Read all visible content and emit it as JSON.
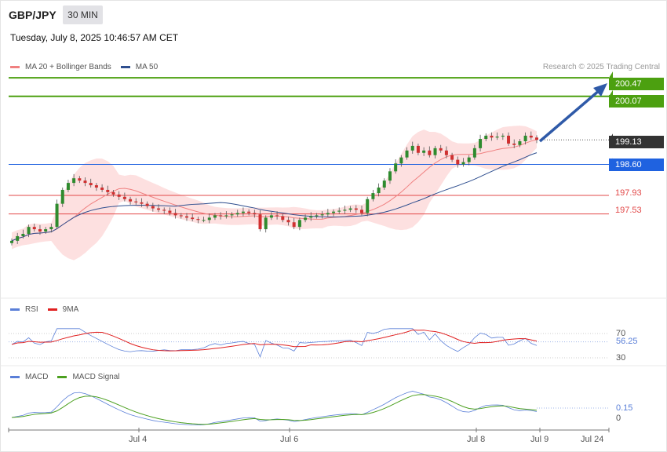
{
  "header": {
    "symbol": "GBP/JPY",
    "timeframe": "30 MIN",
    "datetime": "Tuesday, July 8, 2025 10:46:57 AM CET",
    "credit": "Research © 2025 Trading Central"
  },
  "legends": {
    "main": [
      {
        "label": "MA 20 + Bollinger Bands",
        "color": "#f08080"
      },
      {
        "label": "MA 50",
        "color": "#2f4f8f"
      }
    ],
    "rsi": [
      {
        "label": "RSI",
        "color": "#5a7fd8"
      },
      {
        "label": "9MA",
        "color": "#e02020"
      }
    ],
    "macd": [
      {
        "label": "MACD",
        "color": "#5a7fd8"
      },
      {
        "label": "MACD Signal",
        "color": "#4ca020"
      }
    ]
  },
  "levels": [
    {
      "value": "200.47",
      "kind": "target",
      "color": "#4ca010"
    },
    {
      "value": "200.07",
      "kind": "target",
      "color": "#4ca010"
    },
    {
      "value": "199.13",
      "kind": "last",
      "color": "#333333"
    },
    {
      "value": "198.60",
      "kind": "pivot",
      "color": "#1f62e0"
    },
    {
      "value": "197.93",
      "kind": "support",
      "color": "#e24848"
    },
    {
      "value": "197.53",
      "kind": "support",
      "color": "#e24848"
    }
  ],
  "rsi_axis": {
    "upper": "70",
    "current": "56.25",
    "lower": "30"
  },
  "macd_axis": {
    "current": "0.15",
    "zero": "0"
  },
  "x_labels": [
    "Jul 4",
    "Jul 6",
    "Jul 8",
    "Jul 9",
    "Jul 24"
  ],
  "chart_data": {
    "type": "candlestick",
    "price_range": [
      196.3,
      200.6
    ],
    "close_series": [
      196.95,
      197.05,
      197.1,
      197.25,
      197.2,
      197.15,
      197.2,
      197.25,
      197.75,
      198.05,
      198.2,
      198.3,
      198.25,
      198.2,
      198.15,
      198.1,
      198.05,
      198.0,
      197.95,
      197.9,
      197.85,
      197.8,
      197.78,
      197.75,
      197.7,
      197.65,
      197.62,
      197.6,
      197.55,
      197.5,
      197.48,
      197.45,
      197.42,
      197.4,
      197.4,
      197.45,
      197.5,
      197.48,
      197.5,
      197.52,
      197.55,
      197.58,
      197.55,
      197.52,
      197.2,
      197.45,
      197.5,
      197.48,
      197.4,
      197.35,
      197.25,
      197.4,
      197.45,
      197.48,
      197.5,
      197.52,
      197.55,
      197.58,
      197.6,
      197.62,
      197.65,
      197.62,
      197.55,
      197.85,
      197.98,
      198.1,
      198.25,
      198.45,
      198.62,
      198.75,
      198.9,
      199.0,
      198.85,
      198.9,
      198.8,
      198.95,
      198.9,
      198.8,
      198.7,
      198.6,
      198.65,
      198.75,
      198.95,
      199.15,
      199.22,
      199.18,
      199.2,
      199.22,
      199.05,
      199.02,
      199.1,
      199.22,
      199.18,
      199.13
    ]
  }
}
